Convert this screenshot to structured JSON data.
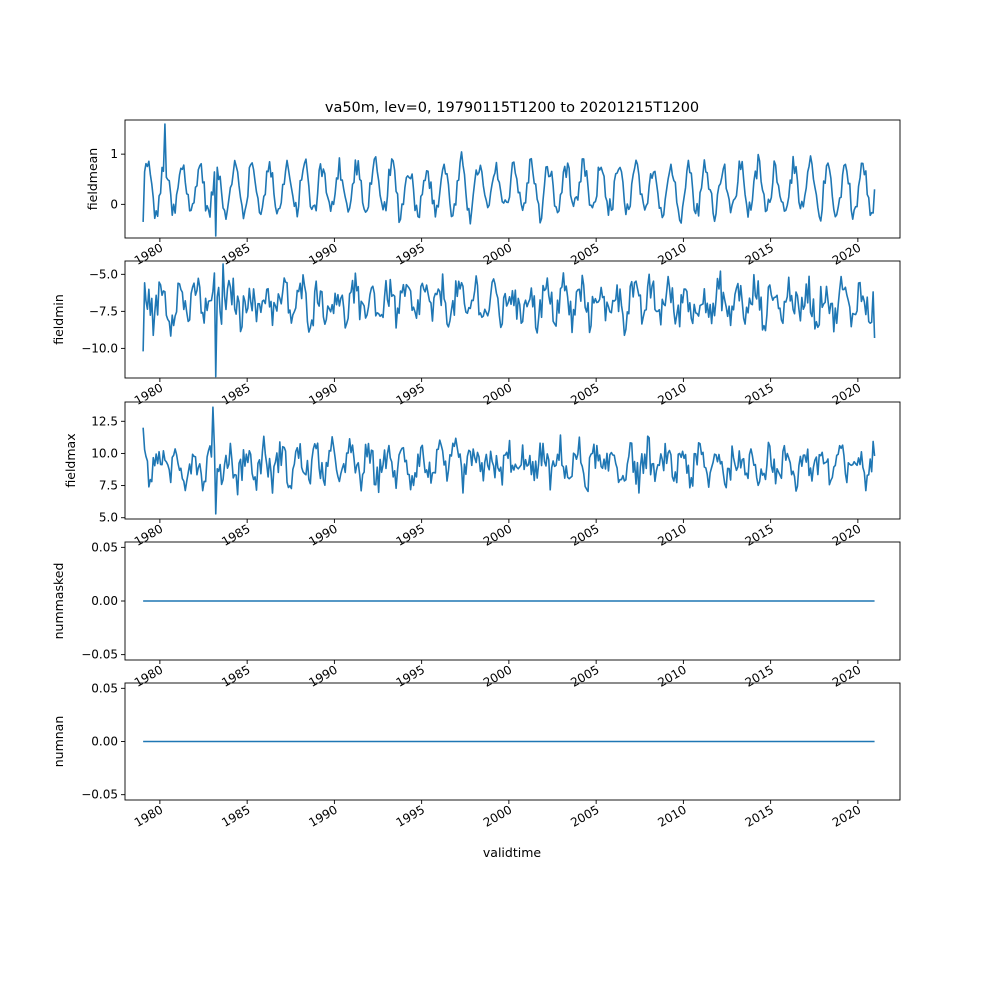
{
  "title": "va50m, lev=0, 19790115T1200 to 20201215T1200",
  "xlabel": "validtime",
  "colors": {
    "line": "#1f77b4",
    "axes": "#000000",
    "background": "#ffffff"
  },
  "chart_data": [
    {
      "type": "line",
      "ylabel": "fieldmean",
      "ylim": [
        -0.67,
        1.68
      ],
      "yticks": [
        0,
        1
      ],
      "ytick_labels": [
        "0",
        "1"
      ],
      "xlim": [
        "1978-01-01",
        "2022-06-01"
      ],
      "x_ticks": [
        "1980-01-01",
        "1985-01-01",
        "1990-01-01",
        "1995-01-01",
        "2000-01-01",
        "2005-01-01",
        "2010-01-01",
        "2015-01-01",
        "2020-01-01"
      ],
      "x_tick_labels": [
        "1980",
        "1985",
        "1990",
        "1995",
        "2000",
        "2005",
        "2010",
        "2015",
        "2020"
      ],
      "x_range": [
        "1979-01-15",
        "2020-12-15"
      ],
      "data_kind": "monthly",
      "y_min_shown": -0.63,
      "y_max_shown": 1.6,
      "y_first": -0.35,
      "y_last": 0.3
    },
    {
      "type": "line",
      "ylabel": "fieldmin",
      "ylim": [
        -12.0,
        -4.1
      ],
      "yticks": [
        -10,
        -7.5,
        -5
      ],
      "ytick_labels": [
        "−10.0",
        "−7.5",
        "−5.0"
      ],
      "xlim": [
        "1978-01-01",
        "2022-06-01"
      ],
      "x_ticks": [
        "1980-01-01",
        "1985-01-01",
        "1990-01-01",
        "1995-01-01",
        "2000-01-01",
        "2005-01-01",
        "2010-01-01",
        "2015-01-01",
        "2020-01-01"
      ],
      "x_tick_labels": [
        "1980",
        "1985",
        "1990",
        "1995",
        "2000",
        "2005",
        "2010",
        "2015",
        "2020"
      ],
      "x_range": [
        "1979-01-15",
        "2020-12-15"
      ],
      "data_kind": "monthly",
      "y_min_shown": -11.9,
      "y_max_shown": -4.3,
      "y_first": -10.2,
      "y_last": -9.3
    },
    {
      "type": "line",
      "ylabel": "fieldmax",
      "ylim": [
        4.9,
        14.0
      ],
      "yticks": [
        5,
        7.5,
        10,
        12.5
      ],
      "ytick_labels": [
        "5.0",
        "7.5",
        "10.0",
        "12.5"
      ],
      "xlim": [
        "1978-01-01",
        "2022-06-01"
      ],
      "x_ticks": [
        "1980-01-01",
        "1985-01-01",
        "1990-01-01",
        "1995-01-01",
        "2000-01-01",
        "2005-01-01",
        "2010-01-01",
        "2015-01-01",
        "2020-01-01"
      ],
      "x_tick_labels": [
        "1980",
        "1985",
        "1990",
        "1995",
        "2000",
        "2005",
        "2010",
        "2015",
        "2020"
      ],
      "x_range": [
        "1979-01-15",
        "2020-12-15"
      ],
      "data_kind": "monthly",
      "y_min_shown": 5.3,
      "y_max_shown": 13.6,
      "y_first": 12.0,
      "y_last": 9.8
    },
    {
      "type": "line",
      "ylabel": "nummasked",
      "ylim": [
        -0.055,
        0.055
      ],
      "yticks": [
        -0.05,
        0,
        0.05
      ],
      "ytick_labels": [
        "−0.05",
        "0.00",
        "0.05"
      ],
      "xlim": [
        "1978-01-01",
        "2022-06-01"
      ],
      "x_ticks": [
        "1980-01-01",
        "1985-01-01",
        "1990-01-01",
        "1995-01-01",
        "2000-01-01",
        "2005-01-01",
        "2010-01-01",
        "2015-01-01",
        "2020-01-01"
      ],
      "x_tick_labels": [
        "1980",
        "1985",
        "1990",
        "1995",
        "2000",
        "2005",
        "2010",
        "2015",
        "2020"
      ],
      "x_range": [
        "1979-01-15",
        "2020-12-15"
      ],
      "data_kind": "constant",
      "y_first": 0,
      "y_last": 0
    },
    {
      "type": "line",
      "ylabel": "numnan",
      "ylim": [
        -0.055,
        0.055
      ],
      "yticks": [
        -0.05,
        0,
        0.05
      ],
      "ytick_labels": [
        "−0.05",
        "0.00",
        "0.05"
      ],
      "xlim": [
        "1978-01-01",
        "2022-06-01"
      ],
      "x_ticks": [
        "1980-01-01",
        "1985-01-01",
        "1990-01-01",
        "1995-01-01",
        "2000-01-01",
        "2005-01-01",
        "2010-01-01",
        "2015-01-01",
        "2020-01-01"
      ],
      "x_tick_labels": [
        "1980",
        "1985",
        "1990",
        "1995",
        "2000",
        "2005",
        "2010",
        "2015",
        "2020"
      ],
      "x_range": [
        "1979-01-15",
        "2020-12-15"
      ],
      "data_kind": "constant",
      "y_first": 0,
      "y_last": 0
    }
  ]
}
